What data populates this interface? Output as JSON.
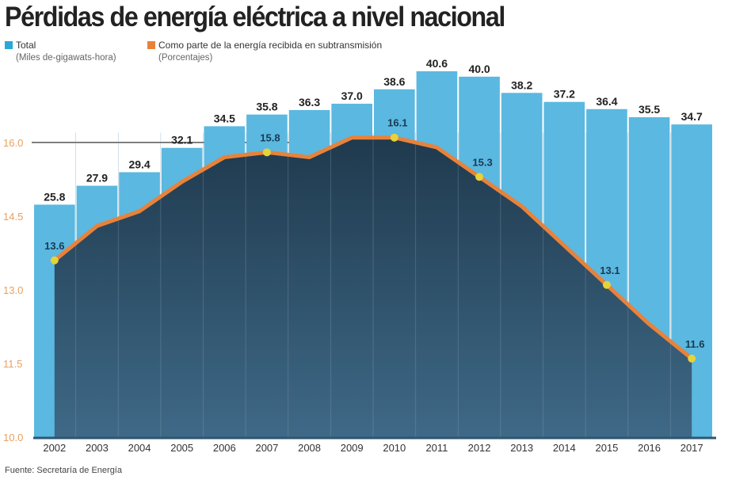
{
  "title": "Pérdidas de energía eléctrica a nivel nacional",
  "source": "Fuente: Secretaría de Energía",
  "colors": {
    "bars": "#5bb8e0",
    "line": "#e8823a",
    "markers": "#e6d23a",
    "area": "#2a4a62",
    "axis_labels": "#e8a060"
  },
  "chart_data": [
    {
      "type": "bar",
      "name": "Total",
      "unit": "(Miles de-gigawats-hora)",
      "categories": [
        "2002",
        "2003",
        "2004",
        "2005",
        "2006",
        "2007",
        "2008",
        "2009",
        "2010",
        "2011",
        "2012",
        "2013",
        "2014",
        "2015",
        "2016",
        "2017"
      ],
      "values": [
        25.8,
        27.9,
        29.4,
        32.1,
        34.5,
        35.8,
        36.3,
        37.0,
        38.6,
        40.6,
        40.0,
        38.2,
        37.2,
        36.4,
        35.5,
        34.7
      ],
      "ylim": [
        0,
        40.6
      ]
    },
    {
      "type": "line",
      "name": "Como parte de la energía recibida en subtransmisión",
      "unit": "(Porcentajes)",
      "categories": [
        "2002",
        "2003",
        "2004",
        "2005",
        "2006",
        "2007",
        "2008",
        "2009",
        "2010",
        "2011",
        "2012",
        "2013",
        "2014",
        "2015",
        "2016",
        "2017"
      ],
      "values": [
        13.6,
        14.3,
        14.6,
        15.2,
        15.7,
        15.8,
        15.7,
        16.1,
        16.1,
        15.9,
        15.3,
        14.7,
        13.9,
        13.1,
        12.3,
        11.6
      ],
      "labeled": {
        "2002": "13.6",
        "2007": "15.8",
        "2010": "16.1",
        "2012": "15.3",
        "2015": "13.1",
        "2017": "11.6"
      },
      "ylim": [
        10.0,
        17.45
      ],
      "yticks": [
        "10.0",
        "11.5",
        "13.0",
        "14.5",
        "16.0"
      ]
    }
  ]
}
